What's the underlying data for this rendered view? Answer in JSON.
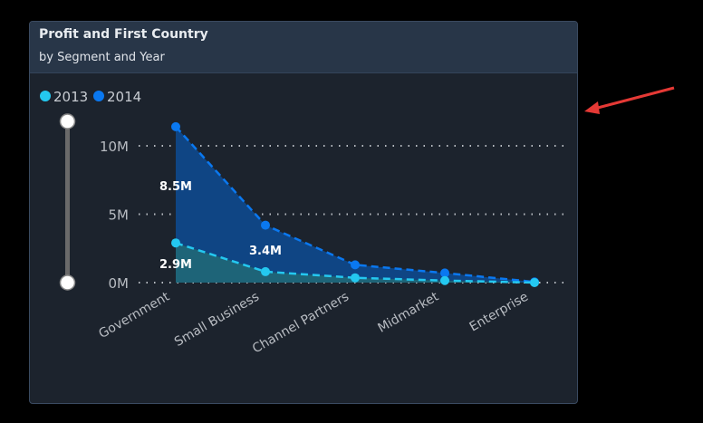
{
  "header": {
    "title": "Profit and First Country",
    "subtitle": "by Segment and Year"
  },
  "chart_data": {
    "type": "area",
    "stacked": true,
    "categories": [
      "Government",
      "Small Business",
      "Channel Partners",
      "Midmarket",
      "Enterprise"
    ],
    "series": [
      {
        "name": "2013",
        "values": [
          2.9,
          0.8,
          0.35,
          0.15,
          0.0
        ],
        "color": "#24c8f0"
      },
      {
        "name": "2014",
        "values": [
          8.5,
          3.4,
          0.95,
          0.55,
          0.05
        ],
        "color": "#0a78f0"
      }
    ],
    "data_labels": [
      {
        "text": "8.5M",
        "series": "2014",
        "category": "Government"
      },
      {
        "text": "2.9M",
        "series": "2013",
        "category": "Government"
      },
      {
        "text": "3.4M",
        "series": "2014",
        "category": "Small Business"
      }
    ],
    "yticks": [
      "0M",
      "5M",
      "10M"
    ],
    "ytick_values": [
      0,
      5,
      10
    ],
    "ylim": [
      0,
      11.4
    ],
    "grid": true,
    "legend": "top-left",
    "xlabel": "",
    "ylabel": ""
  },
  "annotation": {
    "arrow_color": "#e53935"
  }
}
